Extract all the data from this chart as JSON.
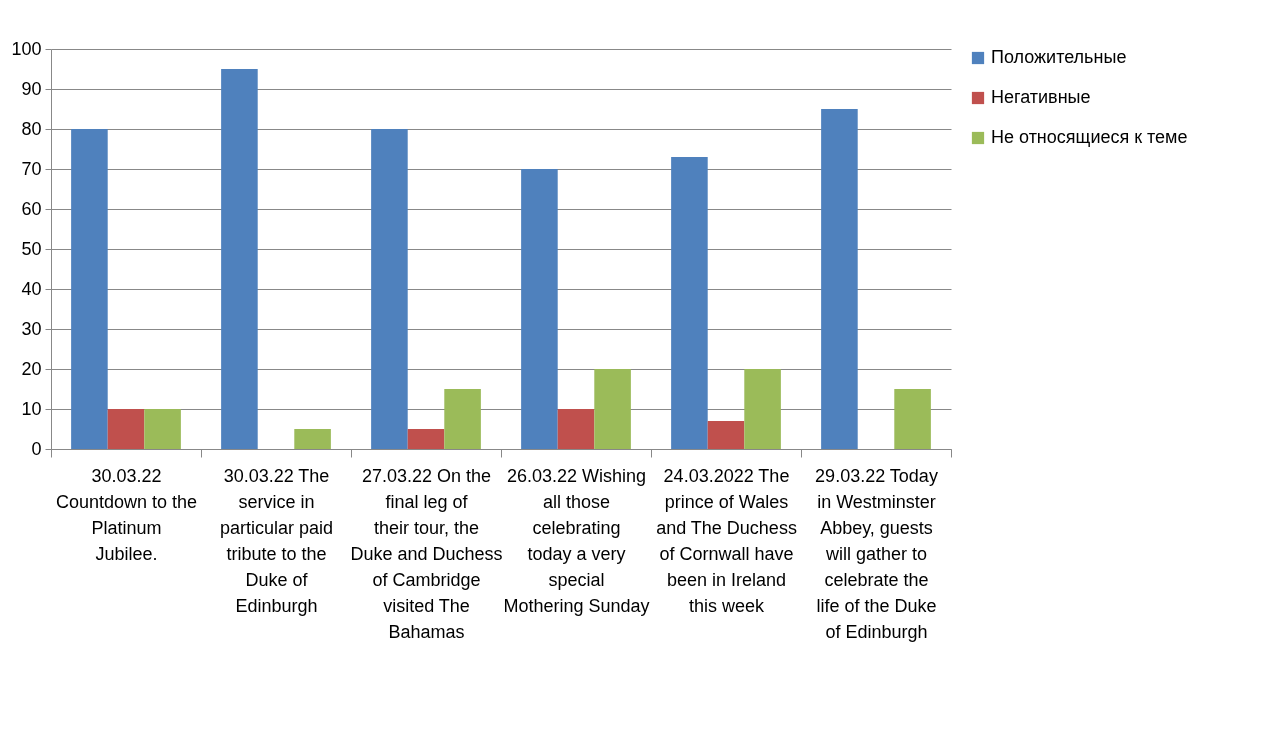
{
  "chart_data": {
    "type": "bar",
    "categories": [
      "30.03.22 Countdown to the Platinum Jubilee.",
      "30.03.22 The service in particular paid tribute to the Duke of Edinburgh",
      "27.03.22 On the final leg of their tour, the Duke and Duchess of Cambridge visited The Bahamas",
      "26.03.22 Wishing all those celebrating today a very special Mothering Sunday",
      "24.03.2022 The prince of Wales and The Duchess of Cornwall have been in Ireland this week",
      "29.03.22 Today in Westminster Abbey, guests will gather to celebrate the life of the Duke of Edinburgh"
    ],
    "series": [
      {
        "name": "Положительные",
        "color": "#4f81bd",
        "values": [
          80,
          95,
          80,
          70,
          73,
          85
        ]
      },
      {
        "name": "Негативные",
        "color": "#c0504d",
        "values": [
          10,
          0,
          5,
          10,
          7,
          0
        ]
      },
      {
        "name": "Не относящиеся к теме",
        "color": "#9bbb59",
        "values": [
          10,
          5,
          15,
          20,
          20,
          15
        ]
      }
    ],
    "ylim": [
      0,
      100
    ],
    "yticks": [
      0,
      10,
      20,
      30,
      40,
      50,
      60,
      70,
      80,
      90,
      100
    ],
    "grid": "y",
    "legend": "right"
  }
}
